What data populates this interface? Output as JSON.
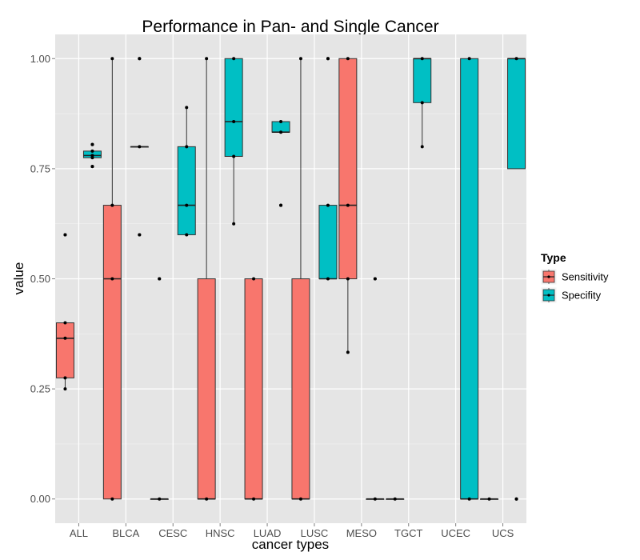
{
  "chart_data": {
    "type": "boxplot",
    "title": "Performance in Pan- and Single Cancer",
    "xlabel": "cancer types",
    "ylabel": "value",
    "ylim": [
      -0.055,
      1.055
    ],
    "yticks": [
      0.0,
      0.25,
      0.5,
      0.75,
      1.0
    ],
    "ytick_labels": [
      "0.00",
      "0.25",
      "0.50",
      "0.75",
      "1.00"
    ],
    "grid": true,
    "legend": {
      "title": "Type",
      "position": "right",
      "entries": [
        {
          "name": "Sensitivity",
          "color": "#F8766D"
        },
        {
          "name": "Specifity",
          "color": "#00BFC4"
        }
      ]
    },
    "categories": [
      "ALL",
      "BLCA",
      "CESC",
      "HNSC",
      "LUAD",
      "LUSC",
      "MESO",
      "TGCT",
      "UCEC",
      "UCS"
    ],
    "series": [
      {
        "name": "Sensitivity",
        "color": "#F8766D",
        "boxes": [
          {
            "category": "ALL",
            "min": 0.25,
            "q1": 0.275,
            "median": 0.365,
            "q3": 0.4,
            "max": 0.4,
            "outliers": [
              0.6
            ],
            "points": [
              0.25,
              0.275,
              0.365,
              0.4,
              0.6
            ]
          },
          {
            "category": "BLCA",
            "min": 0.0,
            "q1": 0.0,
            "median": 0.5,
            "q3": 0.667,
            "max": 1.0,
            "outliers": [],
            "points": [
              0.0,
              0.5,
              0.667,
              1.0
            ]
          },
          {
            "category": "CESC",
            "min": 0.0,
            "q1": 0.0,
            "median": 0.0,
            "q3": 0.0,
            "max": 0.0,
            "outliers": [
              0.5
            ],
            "points": [
              0.0,
              0.5
            ]
          },
          {
            "category": "HNSC",
            "min": 0.0,
            "q1": 0.0,
            "median": 0.0,
            "q3": 0.5,
            "max": 1.0,
            "outliers": [],
            "points": [
              0.0,
              1.0
            ]
          },
          {
            "category": "LUAD",
            "min": 0.0,
            "q1": 0.0,
            "median": 0.0,
            "q3": 0.5,
            "max": 0.5,
            "outliers": [],
            "points": [
              0.0,
              0.5
            ]
          },
          {
            "category": "LUSC",
            "min": 0.0,
            "q1": 0.0,
            "median": 0.0,
            "q3": 0.5,
            "max": 1.0,
            "outliers": [],
            "points": [
              0.0,
              1.0
            ]
          },
          {
            "category": "MESO",
            "min": 0.333,
            "q1": 0.5,
            "median": 0.667,
            "q3": 1.0,
            "max": 1.0,
            "outliers": [],
            "points": [
              0.333,
              0.5,
              0.667,
              1.0
            ]
          },
          {
            "category": "TGCT",
            "min": 0.0,
            "q1": 0.0,
            "median": 0.0,
            "q3": 0.0,
            "max": 0.0,
            "outliers": [],
            "points": [
              0.0
            ]
          },
          {
            "category": "UCS",
            "min": 0.0,
            "q1": 0.0,
            "median": 0.0,
            "q3": 0.0,
            "max": 0.0,
            "outliers": [],
            "points": [
              0.0
            ]
          }
        ]
      },
      {
        "name": "Specifity",
        "color": "#00BFC4",
        "boxes": [
          {
            "category": "ALL",
            "min": 0.775,
            "q1": 0.775,
            "median": 0.78,
            "q3": 0.79,
            "max": 0.79,
            "outliers": [
              0.805,
              0.755
            ],
            "points": [
              0.755,
              0.775,
              0.78,
              0.79,
              0.805
            ]
          },
          {
            "category": "BLCA",
            "min": 0.8,
            "q1": 0.8,
            "median": 0.8,
            "q3": 0.8,
            "max": 0.8,
            "outliers": [
              1.0,
              0.6
            ],
            "points": [
              0.6,
              0.8,
              1.0
            ]
          },
          {
            "category": "CESC",
            "min": 0.6,
            "q1": 0.6,
            "median": 0.667,
            "q3": 0.8,
            "max": 0.889,
            "outliers": [],
            "points": [
              0.6,
              0.667,
              0.8,
              0.889
            ]
          },
          {
            "category": "HNSC",
            "min": 0.625,
            "q1": 0.778,
            "median": 0.857,
            "q3": 1.0,
            "max": 1.0,
            "outliers": [],
            "points": [
              0.625,
              0.778,
              0.857,
              1.0
            ]
          },
          {
            "category": "LUAD",
            "min": 0.833,
            "q1": 0.833,
            "median": 0.833,
            "q3": 0.857,
            "max": 0.857,
            "outliers": [
              0.667
            ],
            "points": [
              0.667,
              0.833,
              0.857
            ]
          },
          {
            "category": "LUSC",
            "min": 0.5,
            "q1": 0.5,
            "median": 0.5,
            "q3": 0.667,
            "max": 0.667,
            "outliers": [
              1.0
            ],
            "points": [
              0.5,
              0.667,
              1.0
            ]
          },
          {
            "category": "MESO",
            "min": 0.0,
            "q1": 0.0,
            "median": 0.0,
            "q3": 0.0,
            "max": 0.0,
            "outliers": [
              0.5
            ],
            "points": [
              0.0,
              0.5
            ]
          },
          {
            "category": "TGCT",
            "min": 0.8,
            "q1": 0.9,
            "median": 1.0,
            "q3": 1.0,
            "max": 1.0,
            "outliers": [],
            "points": [
              0.8,
              0.9,
              1.0
            ]
          },
          {
            "category": "UCEC",
            "min": 0.0,
            "q1": 0.0,
            "median": 0.0,
            "q3": 1.0,
            "max": 1.0,
            "outliers": [],
            "points": [
              0.0,
              1.0
            ]
          },
          {
            "category": "UCS",
            "min": 0.75,
            "q1": 0.75,
            "median": 1.0,
            "q3": 1.0,
            "max": 1.0,
            "outliers": [
              0.0
            ],
            "points": [
              0.0,
              1.0
            ]
          }
        ]
      }
    ]
  }
}
